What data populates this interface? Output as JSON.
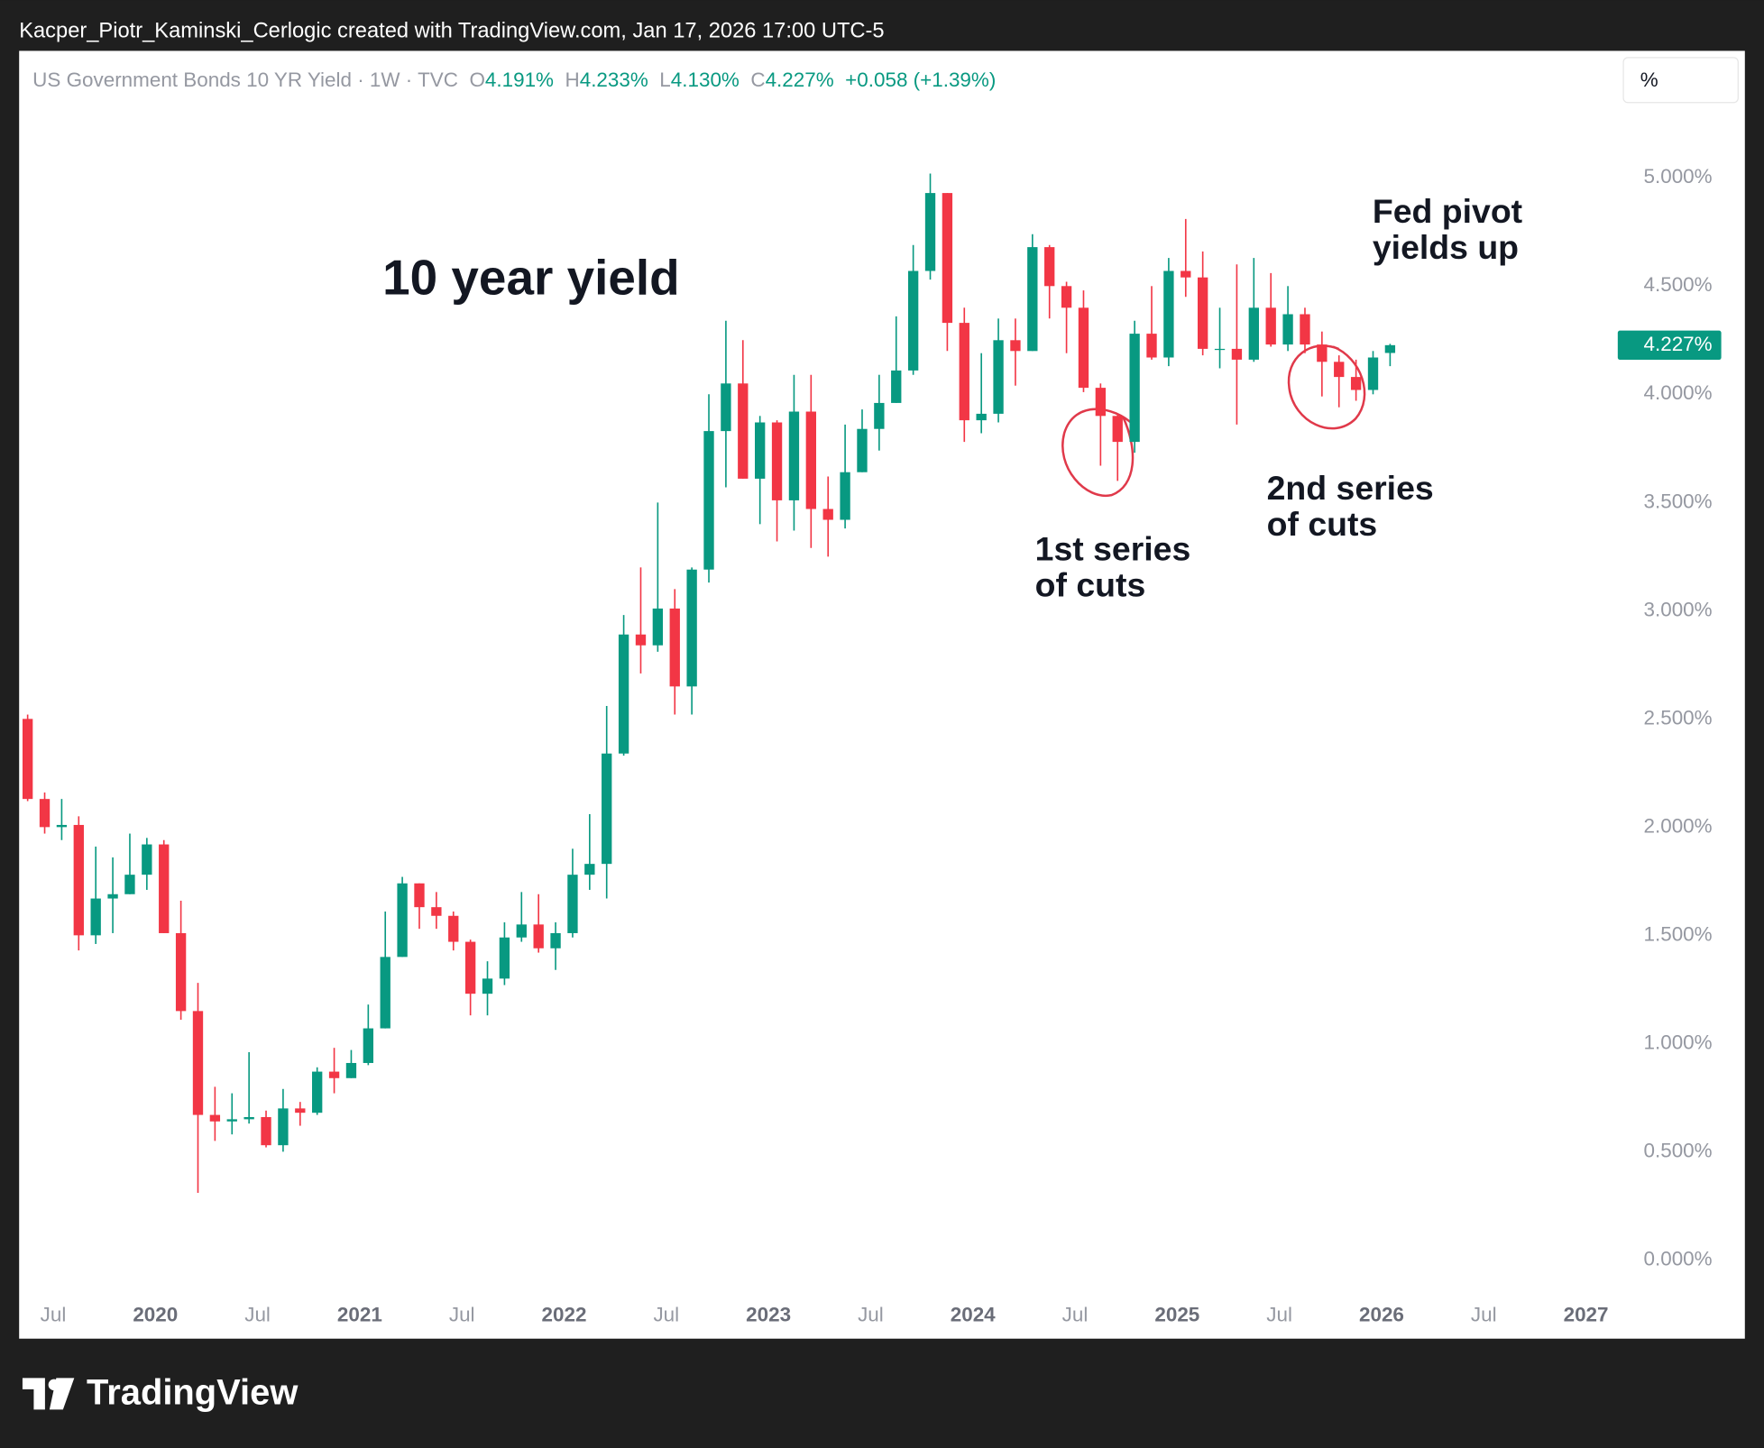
{
  "header": {
    "credit": "Kacper_Piotr_Kaminski_Cerlogic created with TradingView.com, Jan 17, 2026 17:00 UTC-5"
  },
  "legend": {
    "symbol": "US Government Bonds 10 YR Yield · 1W · TVC",
    "o_label": "O",
    "o": "4.191%",
    "h_label": "H",
    "h": "4.233%",
    "l_label": "L",
    "l": "4.130%",
    "c_label": "C",
    "c": "4.227%",
    "change": "+0.058 (+1.39%)"
  },
  "scale_button": "%",
  "footer": {
    "brand": "TradingView"
  },
  "chart_data": {
    "type": "candlestick",
    "title": "10 year yield",
    "annotations": [
      {
        "lines": [
          "1st series",
          "of cuts"
        ]
      },
      {
        "lines": [
          "2nd series",
          "of cuts"
        ]
      },
      {
        "lines": [
          "Fed pivot",
          "yields up"
        ]
      }
    ],
    "up_color": "#089981",
    "down_color": "#f23645",
    "x": [
      "2019-05",
      "2019-06",
      "2019-07",
      "2019-08",
      "2019-09",
      "2019-10",
      "2019-11",
      "2019-12",
      "2020-01",
      "2020-02",
      "2020-03",
      "2020-04",
      "2020-05",
      "2020-06",
      "2020-07",
      "2020-08",
      "2020-09",
      "2020-10",
      "2020-11",
      "2020-12",
      "2021-01",
      "2021-02",
      "2021-03",
      "2021-04",
      "2021-05",
      "2021-06",
      "2021-07",
      "2021-08",
      "2021-09",
      "2021-10",
      "2021-11",
      "2021-12",
      "2022-01",
      "2022-02",
      "2022-03",
      "2022-04",
      "2022-05",
      "2022-06",
      "2022-07",
      "2022-08",
      "2022-09",
      "2022-10",
      "2022-11",
      "2022-12",
      "2023-01",
      "2023-02",
      "2023-03",
      "2023-04",
      "2023-05",
      "2023-06",
      "2023-07",
      "2023-08",
      "2023-09",
      "2023-10",
      "2023-11",
      "2023-12",
      "2024-01",
      "2024-02",
      "2024-03",
      "2024-04",
      "2024-05",
      "2024-06",
      "2024-07",
      "2024-08",
      "2024-09",
      "2024-10",
      "2024-11",
      "2024-12",
      "2025-01",
      "2025-02",
      "2025-03",
      "2025-04",
      "2025-05",
      "2025-06",
      "2025-07",
      "2025-08",
      "2025-09",
      "2025-10",
      "2025-11",
      "2025-12",
      "2026-01"
    ],
    "open": [
      2.5,
      2.13,
      2.0,
      2.01,
      1.5,
      1.67,
      1.69,
      1.78,
      1.92,
      1.51,
      1.15,
      0.67,
      0.64,
      0.65,
      0.66,
      0.53,
      0.7,
      0.68,
      0.87,
      0.84,
      0.91,
      1.07,
      1.4,
      1.74,
      1.63,
      1.59,
      1.47,
      1.23,
      1.3,
      1.49,
      1.55,
      1.44,
      1.51,
      1.78,
      1.83,
      2.34,
      2.89,
      2.84,
      3.01,
      2.65,
      3.19,
      3.83,
      4.05,
      3.61,
      3.87,
      3.51,
      3.92,
      3.47,
      3.42,
      3.64,
      3.84,
      3.96,
      4.11,
      4.57,
      4.93,
      4.33,
      3.88,
      3.91,
      4.25,
      4.2,
      4.68,
      4.5,
      4.4,
      4.03,
      3.9,
      3.78,
      4.28,
      4.17,
      4.57,
      4.54,
      4.21,
      4.21,
      4.16,
      4.4,
      4.23,
      4.37,
      4.23,
      4.15,
      4.08,
      4.02,
      4.191
    ],
    "high": [
      2.52,
      2.16,
      2.13,
      2.05,
      1.91,
      1.86,
      1.97,
      1.95,
      1.94,
      1.66,
      1.28,
      0.8,
      0.77,
      0.96,
      0.69,
      0.79,
      0.73,
      0.89,
      0.98,
      0.97,
      1.18,
      1.61,
      1.77,
      1.74,
      1.7,
      1.61,
      1.48,
      1.38,
      1.56,
      1.7,
      1.69,
      1.56,
      1.9,
      2.06,
      2.56,
      2.98,
      3.2,
      3.5,
      3.1,
      3.2,
      4.0,
      4.34,
      4.25,
      3.9,
      3.88,
      4.09,
      4.09,
      3.62,
      3.86,
      3.93,
      4.09,
      4.36,
      4.69,
      5.02,
      4.93,
      4.4,
      4.19,
      4.35,
      4.35,
      4.74,
      4.69,
      4.52,
      4.48,
      4.05,
      3.91,
      4.34,
      4.5,
      4.63,
      4.81,
      4.66,
      4.4,
      4.6,
      4.63,
      4.56,
      4.5,
      4.4,
      4.29,
      4.18,
      4.16,
      4.2,
      4.233
    ],
    "low": [
      2.12,
      1.97,
      1.94,
      1.43,
      1.46,
      1.51,
      1.69,
      1.71,
      1.51,
      1.11,
      0.31,
      0.55,
      0.58,
      0.63,
      0.52,
      0.5,
      0.62,
      0.67,
      0.77,
      0.84,
      0.9,
      1.07,
      1.4,
      1.53,
      1.53,
      1.43,
      1.13,
      1.13,
      1.27,
      1.47,
      1.42,
      1.34,
      1.49,
      1.71,
      1.67,
      2.33,
      2.71,
      2.81,
      2.52,
      2.52,
      3.13,
      3.57,
      3.61,
      3.4,
      3.32,
      3.37,
      3.29,
      3.25,
      3.38,
      3.64,
      3.74,
      3.96,
      4.09,
      4.53,
      4.2,
      3.78,
      3.82,
      3.87,
      4.04,
      4.2,
      4.35,
      4.19,
      4.01,
      3.67,
      3.6,
      3.73,
      4.16,
      4.13,
      4.45,
      4.18,
      4.12,
      3.86,
      4.15,
      4.22,
      4.2,
      4.19,
      3.99,
      3.94,
      3.97,
      4.0,
      4.13
    ],
    "close": [
      2.13,
      2.0,
      2.01,
      1.5,
      1.67,
      1.69,
      1.78,
      1.92,
      1.51,
      1.15,
      0.67,
      0.64,
      0.65,
      0.66,
      0.53,
      0.7,
      0.68,
      0.87,
      0.84,
      0.91,
      1.07,
      1.4,
      1.74,
      1.63,
      1.59,
      1.47,
      1.23,
      1.3,
      1.49,
      1.55,
      1.44,
      1.51,
      1.78,
      1.83,
      2.34,
      2.89,
      2.84,
      3.01,
      2.65,
      3.19,
      3.83,
      4.05,
      3.61,
      3.87,
      3.51,
      3.92,
      3.47,
      3.42,
      3.64,
      3.84,
      3.96,
      4.11,
      4.57,
      4.93,
      4.33,
      3.88,
      3.91,
      4.25,
      4.2,
      4.68,
      4.5,
      4.4,
      4.03,
      3.9,
      3.78,
      4.28,
      4.17,
      4.57,
      4.54,
      4.21,
      4.21,
      4.16,
      4.4,
      4.23,
      4.37,
      4.23,
      4.15,
      4.08,
      4.02,
      4.17,
      4.227
    ],
    "last_price": {
      "value": 4.227,
      "label": "4.227%"
    },
    "xlim": [
      "2019-05",
      "2027-03"
    ],
    "xticks": [
      {
        "value": "2019-07",
        "label": "Jul"
      },
      {
        "value": "2020-01",
        "label": "2020"
      },
      {
        "value": "2020-07",
        "label": "Jul"
      },
      {
        "value": "2021-01",
        "label": "2021"
      },
      {
        "value": "2021-07",
        "label": "Jul"
      },
      {
        "value": "2022-01",
        "label": "2022"
      },
      {
        "value": "2022-07",
        "label": "Jul"
      },
      {
        "value": "2023-01",
        "label": "2023"
      },
      {
        "value": "2023-07",
        "label": "Jul"
      },
      {
        "value": "2024-01",
        "label": "2024"
      },
      {
        "value": "2024-07",
        "label": "Jul"
      },
      {
        "value": "2025-01",
        "label": "2025"
      },
      {
        "value": "2025-07",
        "label": "Jul"
      },
      {
        "value": "2026-01",
        "label": "2026"
      },
      {
        "value": "2026-07",
        "label": "Jul"
      },
      {
        "value": "2027-01",
        "label": "2027"
      }
    ],
    "ylim": [
      -0.156,
      5.587
    ],
    "yticks": [
      {
        "value": 0,
        "label": "0.000%"
      },
      {
        "value": 0.5,
        "label": "0.500%"
      },
      {
        "value": 1,
        "label": "1.000%"
      },
      {
        "value": 1.5,
        "label": "1.500%"
      },
      {
        "value": 2,
        "label": "2.000%"
      },
      {
        "value": 2.5,
        "label": "2.500%"
      },
      {
        "value": 3,
        "label": "3.000%"
      },
      {
        "value": 3.5,
        "label": "3.500%"
      },
      {
        "value": 4,
        "label": "4.000%"
      },
      {
        "value": 4.5,
        "label": "4.500%"
      },
      {
        "value": 5,
        "label": "5.000%"
      }
    ],
    "grid": false
  }
}
